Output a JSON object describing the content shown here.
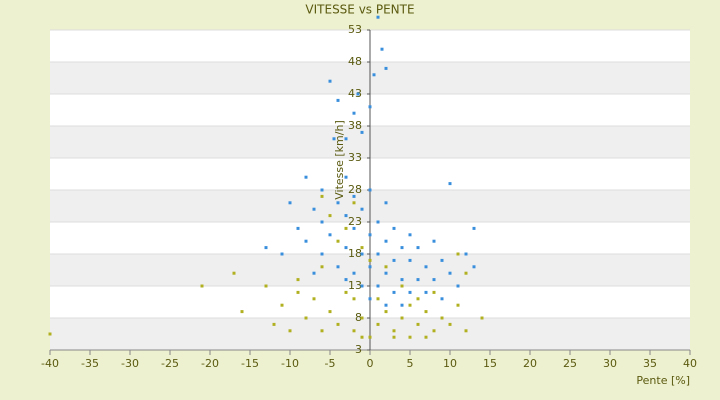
{
  "chart_data": {
    "type": "scatter",
    "title": "VITESSE vs PENTE",
    "xlabel": "Pente [%]",
    "ylabel": "Vitesse [km/h]",
    "xlim": [
      -40,
      40
    ],
    "xticks": [
      -40,
      -35,
      -30,
      -25,
      -20,
      -15,
      -10,
      -5,
      0,
      5,
      10,
      15,
      20,
      25,
      30,
      35,
      40
    ],
    "ylim": [
      3,
      53
    ],
    "yticks": [
      3,
      8,
      13,
      18,
      23,
      28,
      33,
      38,
      43,
      48,
      53
    ],
    "grid": true,
    "series": [
      {
        "color": "#b0b020",
        "x": [
          -40,
          -21,
          -17,
          -16,
          -13,
          -12,
          -11,
          -10,
          -9,
          -8,
          -7,
          -6,
          -5,
          -4,
          -3,
          -2,
          -1,
          0,
          1,
          2,
          3,
          4,
          5,
          6,
          7,
          8,
          9,
          10,
          11,
          12,
          14,
          -6,
          -5,
          -3,
          -2,
          -4,
          -1,
          0,
          2,
          -6,
          4,
          8,
          11,
          12,
          -9,
          6,
          -2,
          1,
          3,
          -1,
          5,
          7
        ],
        "values": [
          5.5,
          13,
          15,
          9,
          13,
          7,
          10,
          6,
          12,
          8,
          11,
          6,
          9,
          7,
          12,
          6,
          8,
          5,
          7,
          9,
          6,
          8,
          10,
          7,
          9,
          6,
          8,
          7,
          10,
          6,
          8,
          27,
          24,
          22,
          26,
          20,
          19,
          17,
          16,
          16,
          13,
          12,
          18,
          15,
          14,
          11,
          11,
          11,
          5,
          5,
          5,
          5
        ]
      },
      {
        "color": "#3a8fdc",
        "x": [
          1,
          1.5,
          0.5,
          2,
          -5,
          -4,
          -1.5,
          -2,
          0,
          -3,
          -4.5,
          -1,
          -3,
          -8,
          -6,
          10,
          -10,
          -7,
          -4,
          -2,
          0,
          2,
          -9,
          -6,
          -3,
          -1,
          1,
          3,
          5,
          13,
          -13,
          -8,
          -5,
          -2,
          0,
          2,
          4,
          6,
          8,
          -11,
          -6,
          -3,
          -1,
          1,
          3,
          5,
          7,
          9,
          12,
          -4,
          -2,
          0,
          2,
          4,
          6,
          8,
          10,
          13,
          -1,
          1,
          3,
          5,
          7,
          9,
          0,
          2,
          4,
          -3,
          -7,
          11
        ],
        "values": [
          55,
          50,
          46,
          47,
          45,
          42,
          43,
          40,
          41,
          36,
          36,
          37,
          30,
          30,
          28,
          29,
          26,
          25,
          26,
          27,
          28,
          26,
          22,
          23,
          24,
          25,
          23,
          22,
          21,
          22,
          19,
          20,
          21,
          22,
          21,
          20,
          19,
          19,
          20,
          18,
          18,
          19,
          18,
          18,
          17,
          17,
          16,
          17,
          18,
          16,
          15,
          16,
          15,
          14,
          14,
          14,
          15,
          16,
          13,
          13,
          12,
          12,
          12,
          11,
          11,
          10,
          10,
          14,
          15,
          13
        ]
      }
    ]
  }
}
